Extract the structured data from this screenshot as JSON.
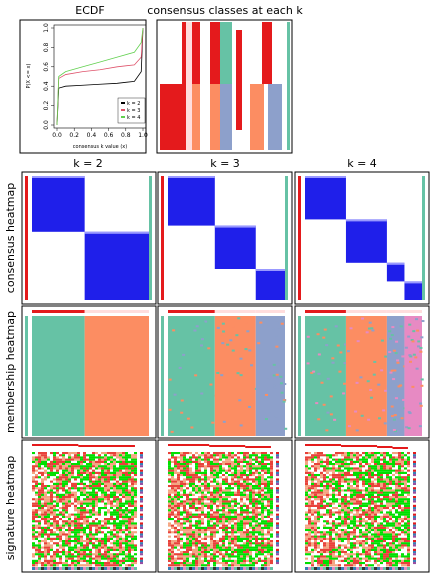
{
  "chart_data": {
    "type": "line",
    "title": "ECDF",
    "xlabel": "consensus k value (x)",
    "ylabel": "P(X <= x)",
    "x": [
      0,
      0.02,
      0.1,
      0.3,
      0.5,
      0.7,
      0.9,
      0.98,
      1
    ],
    "series": [
      {
        "name": "k = 2",
        "color": "#000000",
        "values": [
          0,
          0.38,
          0.4,
          0.41,
          0.42,
          0.43,
          0.45,
          0.55,
          1
        ]
      },
      {
        "name": "k = 3",
        "color": "#df536b",
        "values": [
          0,
          0.48,
          0.52,
          0.55,
          0.57,
          0.6,
          0.62,
          0.7,
          1
        ]
      },
      {
        "name": "k = 4",
        "color": "#61d04f",
        "values": [
          0,
          0.5,
          0.55,
          0.6,
          0.65,
          0.7,
          0.75,
          0.85,
          1
        ]
      }
    ],
    "xlim": [
      0,
      1
    ],
    "ylim": [
      0,
      1
    ],
    "xticks": [
      {
        "value": 0,
        "label": "0.0"
      },
      0.2,
      0.4,
      0.6,
      0.8,
      {
        "value": 1,
        "label": "1.0"
      }
    ],
    "yticks": [
      {
        "value": 0,
        "label": "0.0"
      },
      0.2,
      0.4,
      0.6,
      0.8,
      {
        "value": 1,
        "label": "1.0"
      }
    ],
    "legend": "bottom-right"
  },
  "labels": {
    "classes_title": "consensus classes at each k",
    "columns": [
      "k = 2",
      "k = 3",
      "k = 4"
    ],
    "rows": [
      "consensus heatmap",
      "membership heatmap",
      "signature heatmap"
    ]
  }
}
